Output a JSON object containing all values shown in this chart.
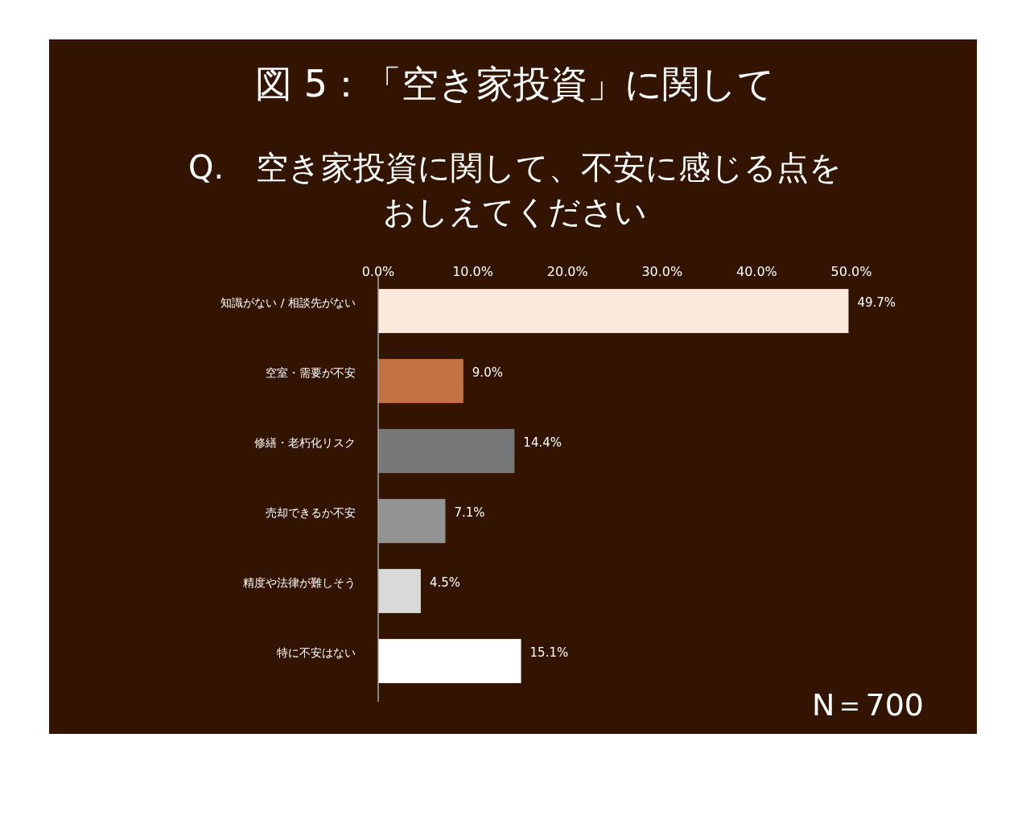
{
  "chart_data": {
    "type": "bar",
    "orientation": "horizontal",
    "title": "図 5：「空き家投資」に関して",
    "subtitle": "Q.　空き家投資に関して、不安に感じる点をおしえてください",
    "categories": [
      "知識がない / 相談先がない",
      "空室・需要が不安",
      "修繕・老朽化リスク",
      "売却できるか不安",
      "精度や法律が難しそう",
      "特に不安はない"
    ],
    "values": [
      49.7,
      9.0,
      14.4,
      7.1,
      4.5,
      15.1
    ],
    "colors": [
      "#fde8dc",
      "#c47244",
      "#777777",
      "#939393",
      "#d9d9d9",
      "#ffffff"
    ],
    "value_labels": [
      "49.7%",
      "9.0%",
      "14.4%",
      "7.1%",
      "4.5%",
      "15.1%"
    ],
    "xlim": [
      0,
      50
    ],
    "xticks": [
      {
        "value": 0,
        "label": "0.0%"
      },
      {
        "value": 10,
        "label": "10.0%"
      },
      {
        "value": 20,
        "label": "20.0%"
      },
      {
        "value": 30,
        "label": "30.0%"
      },
      {
        "value": 40,
        "label": "40.0%"
      },
      {
        "value": 50,
        "label": "50.0%"
      }
    ],
    "grid": false,
    "annotations": [
      "N＝700"
    ]
  }
}
